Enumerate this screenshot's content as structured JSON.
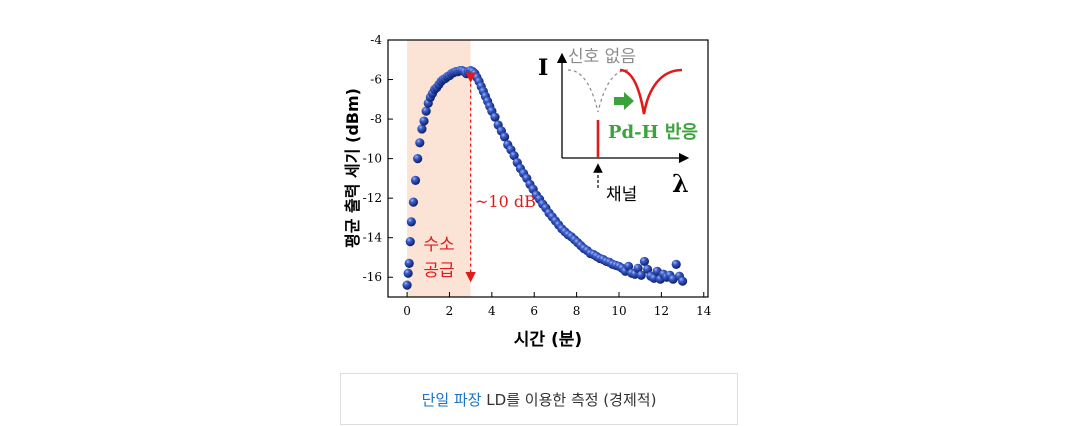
{
  "chart_data": {
    "type": "scatter",
    "xlabel": "시간 (분)",
    "ylabel": "평균 출력 세기 (dBm)",
    "xlim": [
      -0.9,
      14.2
    ],
    "ylim": [
      -17,
      -4
    ],
    "xticks": [
      "0",
      "2",
      "4",
      "6",
      "8",
      "10",
      "12",
      "14"
    ],
    "yticks": [
      "-4",
      "-6",
      "-8",
      "-10",
      "-12",
      "-14",
      "-16"
    ],
    "marker": "sphere",
    "marker_color": "#1f3f9c",
    "highlight_region": {
      "x": [
        0,
        3
      ],
      "color": "#fbe4d6",
      "label": "수소\n공급"
    },
    "annotations": {
      "peak_to_floor": "~10 dB",
      "arrow_x": 3,
      "arrow_y": [
        -5.6,
        -16.2
      ]
    },
    "x": [
      0.0,
      0.05,
      0.1,
      0.15,
      0.2,
      0.3,
      0.4,
      0.5,
      0.6,
      0.7,
      0.8,
      0.9,
      1.0,
      1.1,
      1.2,
      1.3,
      1.4,
      1.5,
      1.6,
      1.7,
      1.8,
      1.9,
      2.0,
      2.1,
      2.2,
      2.3,
      2.4,
      2.5,
      2.6,
      2.7,
      2.8,
      2.9,
      3.0,
      3.1,
      3.2,
      3.3,
      3.4,
      3.5,
      3.6,
      3.7,
      3.8,
      3.9,
      4.0,
      4.15,
      4.3,
      4.45,
      4.6,
      4.75,
      4.9,
      5.05,
      5.2,
      5.35,
      5.5,
      5.65,
      5.8,
      5.95,
      6.1,
      6.25,
      6.4,
      6.55,
      6.7,
      6.85,
      7.0,
      7.15,
      7.3,
      7.45,
      7.6,
      7.75,
      7.9,
      8.05,
      8.2,
      8.35,
      8.5,
      8.65,
      8.8,
      8.95,
      9.1,
      9.25,
      9.4,
      9.55,
      9.7,
      9.85,
      10.0,
      10.15,
      10.3,
      10.45,
      10.6,
      10.75,
      10.9,
      11.05,
      11.2,
      11.35,
      11.5,
      11.65,
      11.8,
      11.95,
      12.1,
      12.25,
      12.4,
      12.55,
      12.7,
      12.85,
      13.0
    ],
    "y": [
      -16.4,
      -15.8,
      -15.3,
      -14.2,
      -13.2,
      -12.2,
      -11.1,
      -10.0,
      -9.2,
      -8.5,
      -8.1,
      -7.6,
      -7.2,
      -6.9,
      -6.7,
      -6.5,
      -6.4,
      -6.25,
      -6.1,
      -6.0,
      -5.95,
      -5.85,
      -5.8,
      -5.7,
      -5.65,
      -5.6,
      -5.6,
      -5.55,
      -5.55,
      -5.6,
      -5.7,
      -5.6,
      -5.55,
      -5.6,
      -5.7,
      -5.9,
      -6.1,
      -6.35,
      -6.6,
      -6.85,
      -7.1,
      -7.35,
      -7.6,
      -7.9,
      -8.3,
      -8.6,
      -8.9,
      -9.3,
      -9.55,
      -9.85,
      -10.2,
      -10.5,
      -10.75,
      -11.0,
      -11.3,
      -11.55,
      -11.85,
      -12.05,
      -12.3,
      -12.5,
      -12.75,
      -12.95,
      -13.15,
      -13.35,
      -13.55,
      -13.7,
      -13.85,
      -13.95,
      -14.1,
      -14.25,
      -14.4,
      -14.55,
      -14.65,
      -14.8,
      -14.85,
      -14.95,
      -15.05,
      -15.1,
      -15.2,
      -15.25,
      -15.35,
      -15.4,
      -15.45,
      -15.55,
      -15.7,
      -15.45,
      -15.8,
      -15.85,
      -15.55,
      -15.9,
      -15.2,
      -15.6,
      -15.95,
      -16.05,
      -15.7,
      -16.1,
      -15.85,
      -16.0,
      -15.9,
      -16.1,
      -15.35,
      -15.95,
      -16.2
    ]
  },
  "inset": {
    "axis_i": "I",
    "axis_lambda": "λ",
    "no_signal": "신호 없음",
    "reaction": "Pd-H 반응",
    "channel": "채널",
    "colors": {
      "reaction": "#e11a1a",
      "text_green": "#3ca33c",
      "gray": "#8c8c8c"
    }
  },
  "caption": {
    "highlight": "단일 파장",
    "rest": " LD를 이용한 측정 (경제적)"
  }
}
